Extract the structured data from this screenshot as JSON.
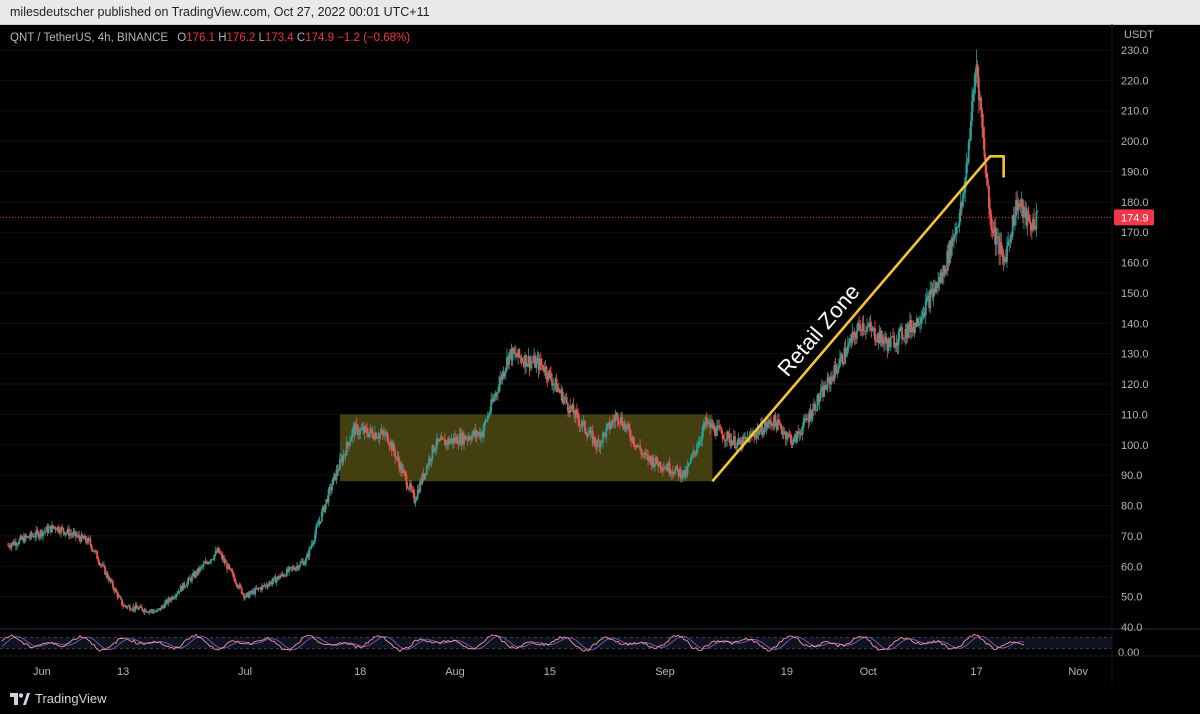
{
  "header": {
    "publisher_text": "milesdeutscher published on TradingView.com, Oct 27, 2022 00:01 UTC+11"
  },
  "legend": {
    "symbol": "QNT / TetherUS, 4h, BINANCE",
    "open_label": "O",
    "open": "176.1",
    "high_label": "H",
    "high": "176.2",
    "low_label": "L",
    "low": "173.4",
    "close_label": "C",
    "close": "174.9",
    "change": "−1.2 (−0.68%)"
  },
  "footer": {
    "brand": "TradingView",
    "brand_icon": "tradingview-logo-icon"
  },
  "colors": {
    "up": "#26a69a",
    "down": "#ef5350",
    "zone": "#5a5416",
    "line": "#f7c331",
    "price": "#f23645",
    "osc_k": "#ef9a9a",
    "osc_d": "#7e57c2"
  },
  "chart_data": [
    {
      "type": "candlestick",
      "currency_label": "USDT",
      "ylim": [
        40,
        230
      ],
      "y_ticks": [
        "40.0",
        "50.0",
        "60.0",
        "70.0",
        "80.0",
        "90.0",
        "100.0",
        "110.0",
        "120.0",
        "130.0",
        "140.0",
        "150.0",
        "160.0",
        "170.0",
        "180.0",
        "190.0",
        "200.0",
        "210.0",
        "220.0",
        "230.0"
      ],
      "x_ticks": [
        "Jun",
        "13",
        "Jul",
        "18",
        "Aug",
        "15",
        "Sep",
        "19",
        "Oct",
        "17",
        "Nov"
      ],
      "last_price": {
        "value": 174.9,
        "label": "174.9"
      },
      "price_path": [
        {
          "date": "2022-05-27",
          "price": 67
        },
        {
          "date": "2022-06-03",
          "price": 73
        },
        {
          "date": "2022-06-08",
          "price": 68
        },
        {
          "date": "2022-06-13",
          "price": 47
        },
        {
          "date": "2022-06-18",
          "price": 45
        },
        {
          "date": "2022-06-23",
          "price": 56
        },
        {
          "date": "2022-06-27",
          "price": 65
        },
        {
          "date": "2022-07-01",
          "price": 50
        },
        {
          "date": "2022-07-05",
          "price": 55
        },
        {
          "date": "2022-07-10",
          "price": 62
        },
        {
          "date": "2022-07-14",
          "price": 88
        },
        {
          "date": "2022-07-17",
          "price": 105
        },
        {
          "date": "2022-07-22",
          "price": 103
        },
        {
          "date": "2022-07-26",
          "price": 82
        },
        {
          "date": "2022-07-29",
          "price": 100
        },
        {
          "date": "2022-08-05",
          "price": 104
        },
        {
          "date": "2022-08-09",
          "price": 130
        },
        {
          "date": "2022-08-14",
          "price": 126
        },
        {
          "date": "2022-08-18",
          "price": 112
        },
        {
          "date": "2022-08-22",
          "price": 100
        },
        {
          "date": "2022-08-25",
          "price": 110
        },
        {
          "date": "2022-08-29",
          "price": 96
        },
        {
          "date": "2022-09-04",
          "price": 90
        },
        {
          "date": "2022-09-07",
          "price": 107
        },
        {
          "date": "2022-09-12",
          "price": 100
        },
        {
          "date": "2022-09-17",
          "price": 108
        },
        {
          "date": "2022-09-20",
          "price": 101
        },
        {
          "date": "2022-09-25",
          "price": 120
        },
        {
          "date": "2022-09-30",
          "price": 140
        },
        {
          "date": "2022-10-04",
          "price": 133
        },
        {
          "date": "2022-10-08",
          "price": 140
        },
        {
          "date": "2022-10-12",
          "price": 156
        },
        {
          "date": "2022-10-15",
          "price": 180
        },
        {
          "date": "2022-10-17",
          "price": 226
        },
        {
          "date": "2022-10-19",
          "price": 175
        },
        {
          "date": "2022-10-21",
          "price": 160
        },
        {
          "date": "2022-10-23",
          "price": 180
        },
        {
          "date": "2022-10-25",
          "price": 172
        },
        {
          "date": "2022-10-26",
          "price": 174.9
        }
      ],
      "annotations": {
        "consolidation_zone": {
          "x_start": "2022-07-15",
          "x_end": "2022-09-08",
          "y_low": 88,
          "y_high": 110
        },
        "trend_line": [
          {
            "date": "2022-09-08",
            "price": 88
          },
          {
            "date": "2022-10-19",
            "price": 195
          },
          {
            "date": "2022-10-21",
            "price": 195
          },
          {
            "date": "2022-10-21",
            "price": 188
          }
        ],
        "text": "Retail Zone"
      }
    },
    {
      "type": "line",
      "name": "oscillator",
      "y_ticks": [
        "0.00"
      ],
      "levels": [
        20,
        80
      ]
    }
  ]
}
